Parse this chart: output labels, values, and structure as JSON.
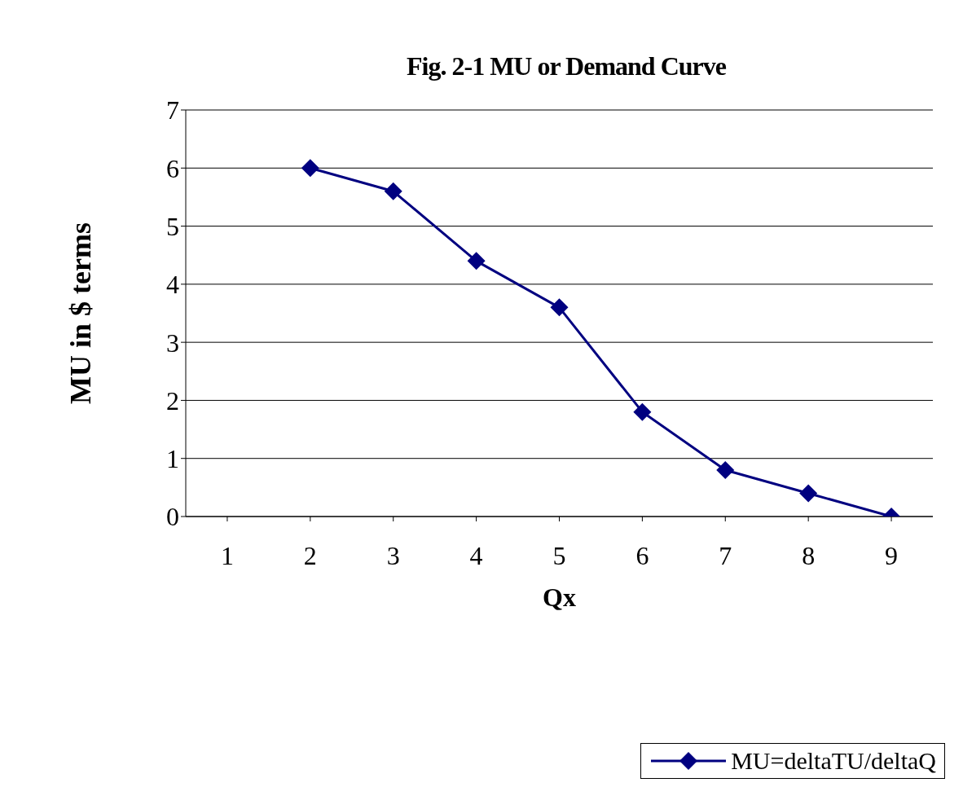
{
  "chart_data": {
    "type": "line",
    "title": "Fig. 2-1 MU or Demand Curve",
    "xlabel": "Qx",
    "ylabel": "MU in $ terms",
    "categories": [
      "1",
      "2",
      "3",
      "4",
      "5",
      "6",
      "7",
      "8",
      "9"
    ],
    "series": [
      {
        "name": "MU=deltaTU/deltaQ",
        "color": "#000080",
        "values": [
          null,
          6,
          5.6,
          4.4,
          3.6,
          1.8,
          0.8,
          0.4,
          0
        ]
      }
    ],
    "ylim": [
      0,
      7
    ],
    "yticks": [
      0,
      1,
      2,
      3,
      4,
      5,
      6,
      7
    ],
    "grid": "y",
    "legend": "bottom right",
    "marker": "diamond"
  }
}
